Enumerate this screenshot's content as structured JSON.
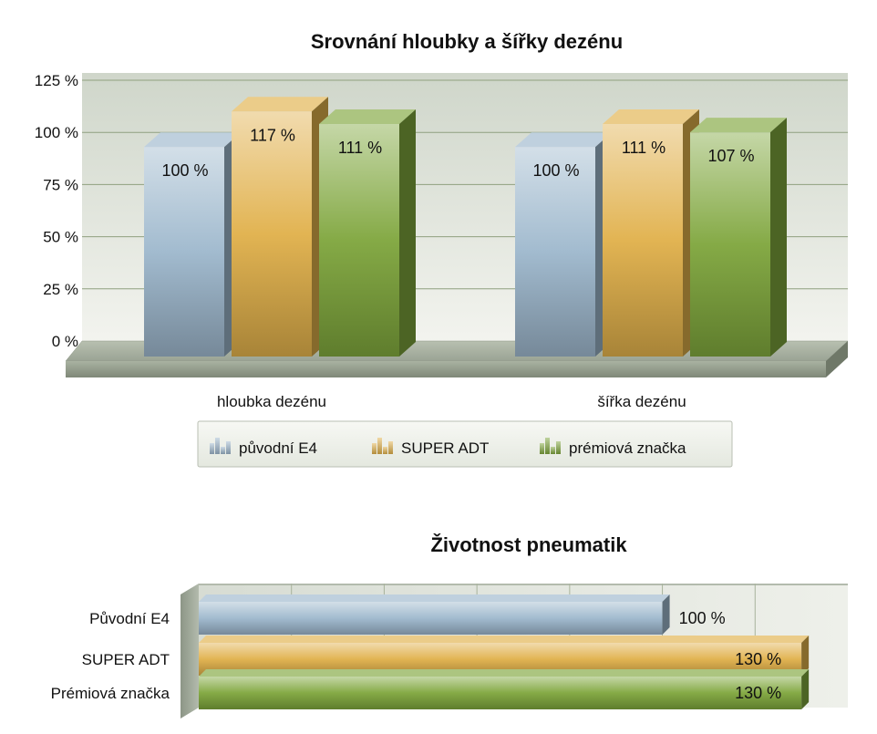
{
  "chart_data": [
    {
      "type": "bar",
      "title": "Srovnání hloubky a šířky dezénu",
      "categories": [
        "hloubka dezénu",
        "šířka dezénu"
      ],
      "yticks": [
        "0 %",
        "25 %",
        "50 %",
        "75 %",
        "100 %",
        "125 %"
      ],
      "ylim": [
        0,
        125
      ],
      "grid": true,
      "legend_position": "bottom",
      "series": [
        {
          "name": "původní E4",
          "values": [
            100,
            100
          ],
          "labels": [
            "100 %",
            "100 %"
          ],
          "color": "#9db7cc"
        },
        {
          "name": "SUPER ADT",
          "values": [
            117,
            111
          ],
          "labels": [
            "117 %",
            "111 %"
          ],
          "color": "#e0b04a"
        },
        {
          "name": "prémiová značka",
          "values": [
            111,
            107
          ],
          "labels": [
            "111 %",
            "107 %"
          ],
          "color": "#7fa63c"
        }
      ]
    },
    {
      "type": "bar",
      "orientation": "horizontal",
      "title": "Životnost pneumatik",
      "categories": [
        "Původní E4",
        "SUPER ADT",
        "Prémiová značka"
      ],
      "values": [
        100,
        130,
        130
      ],
      "labels": [
        "100 %",
        "130 %",
        "130 %"
      ],
      "colors": [
        "#9db7cc",
        "#e0b04a",
        "#7fa63c"
      ],
      "xlim": [
        0,
        140
      ],
      "grid": true
    }
  ]
}
